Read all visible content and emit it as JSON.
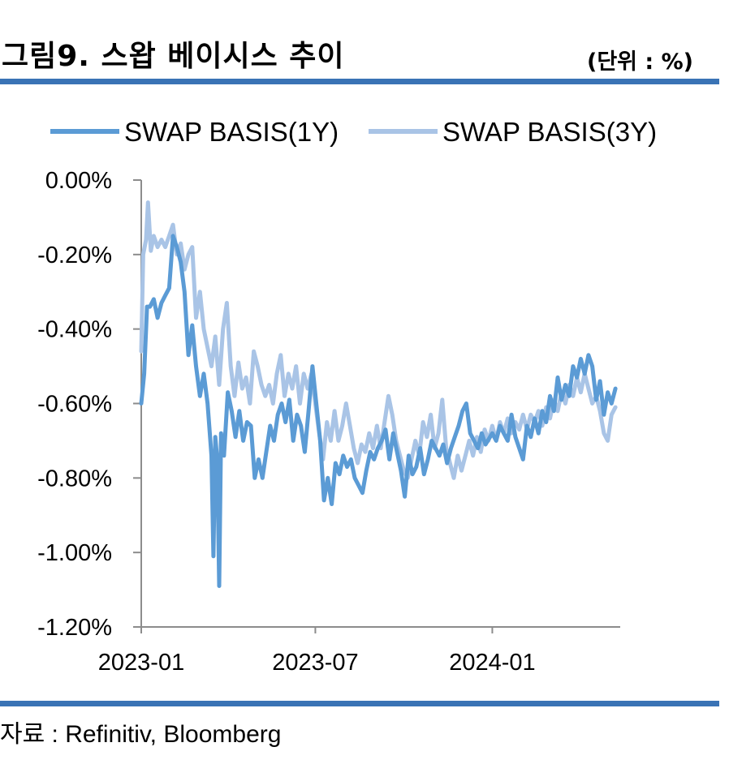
{
  "header": {
    "title": "그림9. 스왑 베이시스 추이",
    "unit": "(단위 : %)"
  },
  "footer": {
    "source": "자료 : Refinitiv, Bloomberg"
  },
  "chart_data": {
    "type": "line",
    "title": "",
    "xlabel": "",
    "ylabel": "",
    "ylim": [
      -1.2,
      0.0
    ],
    "y_ticks": [
      0.0,
      -0.2,
      -0.4,
      -0.6,
      -0.8,
      -1.0,
      -1.2
    ],
    "y_tick_labels": [
      "0.00%",
      "-0.20%",
      "-0.40%",
      "-0.60%",
      "-0.80%",
      "-1.00%",
      "-1.20%"
    ],
    "x_tick_labels": [
      "2023-01",
      "2023-07",
      "2024-01"
    ],
    "x_tick_dates": [
      "2023-01-01",
      "2023-07-01",
      "2024-01-01"
    ],
    "x_range": [
      "2023-01-01",
      "2024-05-13"
    ],
    "legend_position": "top",
    "grid": false,
    "series": [
      {
        "name": "SWAP BASIS(1Y)",
        "color": "#5b9bd5",
        "points": [
          [
            "2023-01-01",
            -0.6
          ],
          [
            "2023-01-04",
            -0.52
          ],
          [
            "2023-01-07",
            -0.34
          ],
          [
            "2023-01-10",
            -0.34
          ],
          [
            "2023-01-14",
            -0.32
          ],
          [
            "2023-01-18",
            -0.37
          ],
          [
            "2023-01-22",
            -0.33
          ],
          [
            "2023-01-26",
            -0.31
          ],
          [
            "2023-01-30",
            -0.29
          ],
          [
            "2023-02-03",
            -0.15
          ],
          [
            "2023-02-07",
            -0.18
          ],
          [
            "2023-02-11",
            -0.22
          ],
          [
            "2023-02-15",
            -0.3
          ],
          [
            "2023-02-19",
            -0.47
          ],
          [
            "2023-02-23",
            -0.39
          ],
          [
            "2023-02-27",
            -0.5
          ],
          [
            "2023-03-03",
            -0.58
          ],
          [
            "2023-03-07",
            -0.52
          ],
          [
            "2023-03-11",
            -0.6
          ],
          [
            "2023-03-15",
            -0.74
          ],
          [
            "2023-03-17",
            -1.01
          ],
          [
            "2023-03-19",
            -0.69
          ],
          [
            "2023-03-21",
            -0.75
          ],
          [
            "2023-03-23",
            -1.09
          ],
          [
            "2023-03-25",
            -0.68
          ],
          [
            "2023-03-28",
            -0.74
          ],
          [
            "2023-04-01",
            -0.57
          ],
          [
            "2023-04-05",
            -0.62
          ],
          [
            "2023-04-09",
            -0.69
          ],
          [
            "2023-04-13",
            -0.62
          ],
          [
            "2023-04-17",
            -0.7
          ],
          [
            "2023-04-21",
            -0.65
          ],
          [
            "2023-04-25",
            -0.66
          ],
          [
            "2023-04-29",
            -0.8
          ],
          [
            "2023-05-03",
            -0.75
          ],
          [
            "2023-05-07",
            -0.8
          ],
          [
            "2023-05-11",
            -0.73
          ],
          [
            "2023-05-15",
            -0.66
          ],
          [
            "2023-05-19",
            -0.7
          ],
          [
            "2023-05-23",
            -0.63
          ],
          [
            "2023-05-27",
            -0.6
          ],
          [
            "2023-05-31",
            -0.65
          ],
          [
            "2023-06-04",
            -0.59
          ],
          [
            "2023-06-08",
            -0.7
          ],
          [
            "2023-06-12",
            -0.63
          ],
          [
            "2023-06-16",
            -0.66
          ],
          [
            "2023-06-20",
            -0.73
          ],
          [
            "2023-06-24",
            -0.62
          ],
          [
            "2023-06-28",
            -0.5
          ],
          [
            "2023-07-02",
            -0.6
          ],
          [
            "2023-07-06",
            -0.7
          ],
          [
            "2023-07-10",
            -0.86
          ],
          [
            "2023-07-14",
            -0.8
          ],
          [
            "2023-07-18",
            -0.87
          ],
          [
            "2023-07-22",
            -0.76
          ],
          [
            "2023-07-26",
            -0.79
          ],
          [
            "2023-07-30",
            -0.74
          ],
          [
            "2023-08-03",
            -0.77
          ],
          [
            "2023-08-07",
            -0.75
          ],
          [
            "2023-08-11",
            -0.8
          ],
          [
            "2023-08-15",
            -0.82
          ],
          [
            "2023-08-19",
            -0.84
          ],
          [
            "2023-08-23",
            -0.78
          ],
          [
            "2023-08-27",
            -0.73
          ],
          [
            "2023-08-31",
            -0.75
          ],
          [
            "2023-09-04",
            -0.72
          ],
          [
            "2023-09-08",
            -0.7
          ],
          [
            "2023-09-12",
            -0.67
          ],
          [
            "2023-09-16",
            -0.75
          ],
          [
            "2023-09-20",
            -0.68
          ],
          [
            "2023-09-24",
            -0.73
          ],
          [
            "2023-09-28",
            -0.78
          ],
          [
            "2023-10-02",
            -0.85
          ],
          [
            "2023-10-06",
            -0.74
          ],
          [
            "2023-10-10",
            -0.79
          ],
          [
            "2023-10-14",
            -0.77
          ],
          [
            "2023-10-18",
            -0.72
          ],
          [
            "2023-10-22",
            -0.79
          ],
          [
            "2023-10-26",
            -0.75
          ],
          [
            "2023-10-30",
            -0.7
          ],
          [
            "2023-11-03",
            -0.72
          ],
          [
            "2023-11-07",
            -0.74
          ],
          [
            "2023-11-11",
            -0.71
          ],
          [
            "2023-11-15",
            -0.76
          ],
          [
            "2023-11-19",
            -0.72
          ],
          [
            "2023-11-23",
            -0.69
          ],
          [
            "2023-11-27",
            -0.66
          ],
          [
            "2023-12-01",
            -0.62
          ],
          [
            "2023-12-05",
            -0.6
          ],
          [
            "2023-12-09",
            -0.68
          ],
          [
            "2023-12-13",
            -0.7
          ],
          [
            "2023-12-17",
            -0.72
          ],
          [
            "2023-12-21",
            -0.68
          ],
          [
            "2023-12-25",
            -0.71
          ],
          [
            "2024-01-01",
            -0.68
          ],
          [
            "2024-01-05",
            -0.7
          ],
          [
            "2024-01-09",
            -0.66
          ],
          [
            "2024-01-13",
            -0.68
          ],
          [
            "2024-01-17",
            -0.7
          ],
          [
            "2024-01-21",
            -0.63
          ],
          [
            "2024-01-25",
            -0.69
          ],
          [
            "2024-01-29",
            -0.72
          ],
          [
            "2024-02-02",
            -0.75
          ],
          [
            "2024-02-06",
            -0.66
          ],
          [
            "2024-02-10",
            -0.69
          ],
          [
            "2024-02-14",
            -0.64
          ],
          [
            "2024-02-18",
            -0.68
          ],
          [
            "2024-02-22",
            -0.62
          ],
          [
            "2024-02-26",
            -0.65
          ],
          [
            "2024-03-01",
            -0.58
          ],
          [
            "2024-03-05",
            -0.62
          ],
          [
            "2024-03-09",
            -0.53
          ],
          [
            "2024-03-13",
            -0.59
          ],
          [
            "2024-03-17",
            -0.55
          ],
          [
            "2024-03-21",
            -0.58
          ],
          [
            "2024-03-25",
            -0.5
          ],
          [
            "2024-03-29",
            -0.53
          ],
          [
            "2024-04-02",
            -0.48
          ],
          [
            "2024-04-06",
            -0.52
          ],
          [
            "2024-04-10",
            -0.47
          ],
          [
            "2024-04-14",
            -0.5
          ],
          [
            "2024-04-18",
            -0.59
          ],
          [
            "2024-04-22",
            -0.54
          ],
          [
            "2024-04-26",
            -0.63
          ],
          [
            "2024-04-30",
            -0.57
          ],
          [
            "2024-05-04",
            -0.6
          ],
          [
            "2024-05-08",
            -0.56
          ]
        ]
      },
      {
        "name": "SWAP BASIS(3Y)",
        "color": "#a9c4e6",
        "points": [
          [
            "2023-01-01",
            -0.46
          ],
          [
            "2023-01-03",
            -0.2
          ],
          [
            "2023-01-06",
            -0.16
          ],
          [
            "2023-01-08",
            -0.06
          ],
          [
            "2023-01-11",
            -0.19
          ],
          [
            "2023-01-14",
            -0.15
          ],
          [
            "2023-01-18",
            -0.18
          ],
          [
            "2023-01-22",
            -0.16
          ],
          [
            "2023-01-26",
            -0.18
          ],
          [
            "2023-01-30",
            -0.15
          ],
          [
            "2023-02-03",
            -0.12
          ],
          [
            "2023-02-07",
            -0.2
          ],
          [
            "2023-02-11",
            -0.17
          ],
          [
            "2023-02-15",
            -0.24
          ],
          [
            "2023-02-19",
            -0.2
          ],
          [
            "2023-02-23",
            -0.18
          ],
          [
            "2023-02-27",
            -0.37
          ],
          [
            "2023-03-03",
            -0.3
          ],
          [
            "2023-03-07",
            -0.4
          ],
          [
            "2023-03-11",
            -0.45
          ],
          [
            "2023-03-15",
            -0.5
          ],
          [
            "2023-03-19",
            -0.42
          ],
          [
            "2023-03-23",
            -0.55
          ],
          [
            "2023-03-27",
            -0.4
          ],
          [
            "2023-03-31",
            -0.33
          ],
          [
            "2023-04-04",
            -0.5
          ],
          [
            "2023-04-08",
            -0.58
          ],
          [
            "2023-04-12",
            -0.49
          ],
          [
            "2023-04-16",
            -0.56
          ],
          [
            "2023-04-20",
            -0.53
          ],
          [
            "2023-04-24",
            -0.6
          ],
          [
            "2023-04-28",
            -0.46
          ],
          [
            "2023-05-02",
            -0.5
          ],
          [
            "2023-05-06",
            -0.55
          ],
          [
            "2023-05-10",
            -0.58
          ],
          [
            "2023-05-14",
            -0.55
          ],
          [
            "2023-05-18",
            -0.6
          ],
          [
            "2023-05-22",
            -0.52
          ],
          [
            "2023-05-26",
            -0.47
          ],
          [
            "2023-05-30",
            -0.58
          ],
          [
            "2023-06-03",
            -0.52
          ],
          [
            "2023-06-07",
            -0.56
          ],
          [
            "2023-06-11",
            -0.5
          ],
          [
            "2023-06-15",
            -0.6
          ],
          [
            "2023-06-19",
            -0.52
          ],
          [
            "2023-06-23",
            -0.56
          ],
          [
            "2023-06-27",
            -0.52
          ],
          [
            "2023-07-01",
            -0.6
          ],
          [
            "2023-07-05",
            -0.68
          ],
          [
            "2023-07-09",
            -0.75
          ],
          [
            "2023-07-13",
            -0.65
          ],
          [
            "2023-07-17",
            -0.7
          ],
          [
            "2023-07-21",
            -0.62
          ],
          [
            "2023-07-25",
            -0.7
          ],
          [
            "2023-07-29",
            -0.66
          ],
          [
            "2023-08-02",
            -0.6
          ],
          [
            "2023-08-06",
            -0.66
          ],
          [
            "2023-08-10",
            -0.72
          ],
          [
            "2023-08-14",
            -0.76
          ],
          [
            "2023-08-18",
            -0.71
          ],
          [
            "2023-08-22",
            -0.73
          ],
          [
            "2023-08-26",
            -0.68
          ],
          [
            "2023-08-30",
            -0.72
          ],
          [
            "2023-09-03",
            -0.66
          ],
          [
            "2023-09-07",
            -0.72
          ],
          [
            "2023-09-11",
            -0.65
          ],
          [
            "2023-09-15",
            -0.58
          ],
          [
            "2023-09-19",
            -0.63
          ],
          [
            "2023-09-23",
            -0.7
          ],
          [
            "2023-09-27",
            -0.74
          ],
          [
            "2023-10-01",
            -0.78
          ],
          [
            "2023-10-05",
            -0.8
          ],
          [
            "2023-10-09",
            -0.75
          ],
          [
            "2023-10-13",
            -0.7
          ],
          [
            "2023-10-17",
            -0.74
          ],
          [
            "2023-10-21",
            -0.65
          ],
          [
            "2023-10-25",
            -0.69
          ],
          [
            "2023-10-29",
            -0.63
          ],
          [
            "2023-11-02",
            -0.72
          ],
          [
            "2023-11-06",
            -0.68
          ],
          [
            "2023-11-10",
            -0.59
          ],
          [
            "2023-11-14",
            -0.72
          ],
          [
            "2023-11-18",
            -0.76
          ],
          [
            "2023-11-22",
            -0.8
          ],
          [
            "2023-11-26",
            -0.74
          ],
          [
            "2023-11-30",
            -0.78
          ],
          [
            "2023-12-04",
            -0.74
          ],
          [
            "2023-12-08",
            -0.7
          ],
          [
            "2023-12-12",
            -0.74
          ],
          [
            "2023-12-16",
            -0.69
          ],
          [
            "2023-12-20",
            -0.73
          ],
          [
            "2023-12-24",
            -0.67
          ],
          [
            "2023-12-28",
            -0.7
          ],
          [
            "2024-01-01",
            -0.66
          ],
          [
            "2024-01-05",
            -0.7
          ],
          [
            "2024-01-09",
            -0.65
          ],
          [
            "2024-01-13",
            -0.68
          ],
          [
            "2024-01-17",
            -0.64
          ],
          [
            "2024-01-21",
            -0.68
          ],
          [
            "2024-01-25",
            -0.65
          ],
          [
            "2024-01-29",
            -0.67
          ],
          [
            "2024-02-02",
            -0.63
          ],
          [
            "2024-02-06",
            -0.67
          ],
          [
            "2024-02-10",
            -0.63
          ],
          [
            "2024-02-14",
            -0.65
          ],
          [
            "2024-02-18",
            -0.62
          ],
          [
            "2024-02-22",
            -0.66
          ],
          [
            "2024-02-26",
            -0.61
          ],
          [
            "2024-03-01",
            -0.64
          ],
          [
            "2024-03-05",
            -0.59
          ],
          [
            "2024-03-09",
            -0.62
          ],
          [
            "2024-03-13",
            -0.57
          ],
          [
            "2024-03-17",
            -0.6
          ],
          [
            "2024-03-21",
            -0.55
          ],
          [
            "2024-03-25",
            -0.58
          ],
          [
            "2024-03-29",
            -0.53
          ],
          [
            "2024-04-02",
            -0.57
          ],
          [
            "2024-04-06",
            -0.52
          ],
          [
            "2024-04-10",
            -0.56
          ],
          [
            "2024-04-14",
            -0.6
          ],
          [
            "2024-04-18",
            -0.58
          ],
          [
            "2024-04-22",
            -0.62
          ],
          [
            "2024-04-26",
            -0.68
          ],
          [
            "2024-04-30",
            -0.7
          ],
          [
            "2024-05-04",
            -0.63
          ],
          [
            "2024-05-08",
            -0.61
          ]
        ]
      }
    ]
  }
}
